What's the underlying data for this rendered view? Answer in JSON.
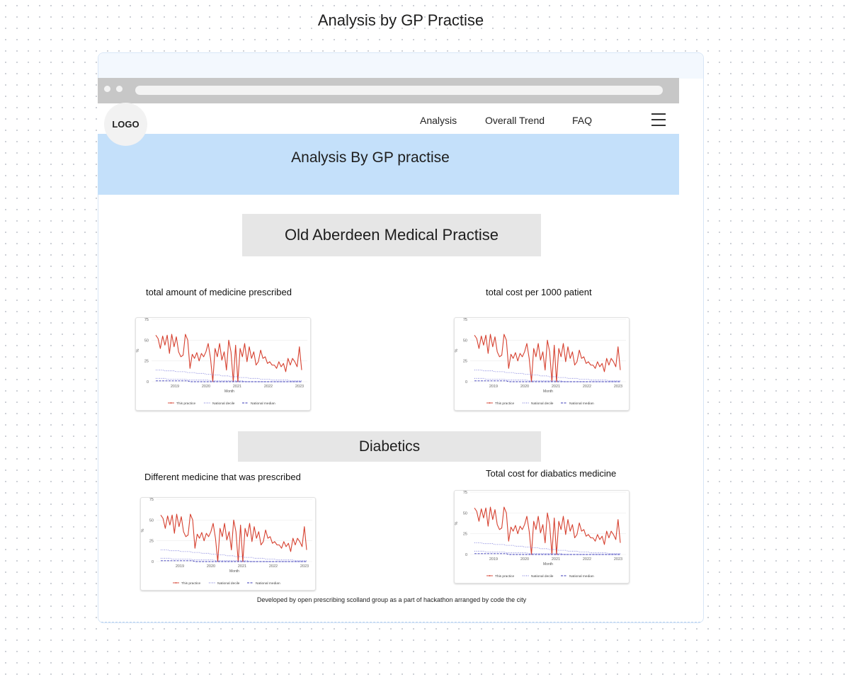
{
  "frame_title": "Analysis by GP Practise",
  "logo": "LOGO",
  "nav": {
    "items": [
      "Analysis",
      "Overall Trend",
      "FAQ"
    ]
  },
  "hero": {
    "title": "Analysis By GP practise"
  },
  "practice_title": "Old Aberdeen Medical Practise",
  "section_title": "Diabetics",
  "charts": [
    {
      "label": "total amount of medicine prescribed"
    },
    {
      "label": "total cost per 1000 patient"
    },
    {
      "label": "Different medicine that was prescribed"
    },
    {
      "label": "Total cost for diabatics medicine"
    }
  ],
  "footer": "Developed by open prescribing scolland group as a part of hackathon arranged by code the city",
  "colors": {
    "practice": "#d6402f",
    "decile": "#6b6bd6",
    "median": "#3a3ab8",
    "hero": "#c4e0fa"
  },
  "chart_data": {
    "type": "line",
    "ylabel": "%",
    "xlabel": "Month",
    "ylim": [
      0,
      75
    ],
    "yticks": [
      0,
      25,
      50,
      75
    ],
    "xticks": [
      "2019",
      "2020",
      "2021",
      "2022",
      "2023"
    ],
    "x_start": 2018.25,
    "x_end": 2023.25,
    "legend": [
      "This practice",
      "National decile",
      "National median"
    ],
    "legend_position": "bottom",
    "series": [
      {
        "name": "This practice",
        "style": "solid",
        "values": [
          56,
          52,
          40,
          55,
          44,
          56,
          34,
          57,
          42,
          54,
          36,
          30,
          32,
          57,
          50,
          16,
          33,
          28,
          35,
          25,
          34,
          30,
          36,
          46,
          28,
          0,
          40,
          30,
          46,
          26,
          36,
          14,
          50,
          36,
          0,
          44,
          0,
          40,
          30,
          46,
          24,
          42,
          28,
          36,
          20,
          24,
          38,
          28,
          30,
          22,
          24,
          20,
          20,
          16,
          24,
          18,
          22,
          12,
          28,
          20,
          28,
          24,
          18,
          42,
          14
        ]
      },
      {
        "name": "National decile",
        "style": "dotted",
        "values": [
          14,
          14,
          14,
          14,
          13,
          13,
          13,
          13,
          13,
          12,
          12,
          12,
          12,
          12,
          11,
          11,
          11,
          11,
          10,
          10,
          10,
          10,
          9,
          9,
          9,
          8,
          8,
          8,
          8,
          7,
          7,
          7,
          7,
          6,
          6,
          6,
          6,
          5,
          5,
          5,
          5,
          4,
          4,
          4,
          4,
          4,
          3,
          3,
          3,
          3,
          3,
          2,
          2,
          2,
          2,
          2,
          2,
          2,
          2,
          1,
          1,
          1,
          1,
          1,
          1
        ]
      },
      {
        "name": "National decile",
        "style": "dotted",
        "values": [
          4,
          4,
          4,
          4,
          4,
          3,
          3,
          3,
          3,
          3,
          3,
          3,
          3,
          3,
          2,
          2,
          2,
          2,
          2,
          2,
          2,
          2,
          2,
          2,
          1,
          1,
          1,
          1,
          1,
          1,
          1,
          1,
          1,
          1,
          1,
          1,
          1,
          1,
          1,
          0,
          0,
          0,
          0,
          0,
          0,
          0,
          0,
          0,
          0,
          0,
          0,
          0,
          0,
          0,
          0,
          0,
          0,
          0,
          0,
          0,
          0,
          0,
          0,
          0,
          0
        ]
      },
      {
        "name": "National median",
        "style": "dashed",
        "values": [
          1,
          1,
          1,
          1,
          1,
          1,
          1,
          1,
          1,
          1,
          1,
          1,
          1,
          1,
          1,
          0,
          0,
          0,
          0,
          0,
          0,
          0,
          0,
          0,
          0,
          0,
          0,
          0,
          0,
          0,
          0,
          0,
          0,
          0,
          0,
          0,
          0,
          0,
          0,
          0,
          0,
          0,
          0,
          0,
          0,
          0,
          0,
          0,
          0,
          0,
          0,
          0,
          0,
          0,
          0,
          0,
          0,
          0,
          0,
          0,
          0,
          0,
          0,
          0,
          0
        ]
      }
    ]
  }
}
